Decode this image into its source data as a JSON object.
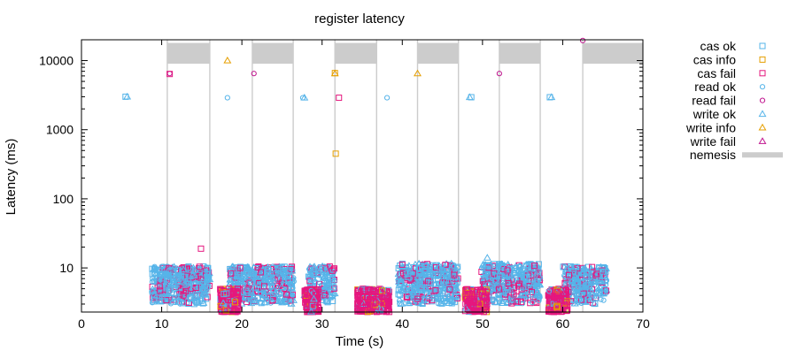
{
  "chart_data": {
    "type": "scatter",
    "title": "register latency",
    "xlabel": "Time (s)",
    "ylabel": "Latency (ms)",
    "xlim": [
      0,
      70
    ],
    "ylim": [
      2.3,
      20000
    ],
    "yscale": "log",
    "x_ticks": [
      0,
      10,
      20,
      30,
      40,
      50,
      60,
      70
    ],
    "y_ticks": [
      10,
      100,
      1000,
      10000
    ],
    "grid": false,
    "legend_position": "right",
    "series": [
      {
        "name": "cas ok",
        "marker": "square",
        "color": "#56b4e9"
      },
      {
        "name": "cas info",
        "marker": "square",
        "color": "#e69f00"
      },
      {
        "name": "cas fail",
        "marker": "square",
        "color": "#e5177e"
      },
      {
        "name": "read ok",
        "marker": "circle",
        "color": "#56b4e9"
      },
      {
        "name": "read fail",
        "marker": "circle",
        "color": "#c0148e"
      },
      {
        "name": "write ok",
        "marker": "triangle",
        "color": "#56b4e9"
      },
      {
        "name": "write info",
        "marker": "triangle",
        "color": "#e69f00"
      },
      {
        "name": "write fail",
        "marker": "triangle",
        "color": "#c0148e"
      },
      {
        "name": "nemesis",
        "marker": "band",
        "color": "#cccccc"
      }
    ],
    "nemesis_intervals": [
      [
        10.7,
        16.0
      ],
      [
        21.3,
        26.4
      ],
      [
        31.6,
        36.8
      ],
      [
        41.9,
        47.0
      ],
      [
        52.1,
        57.2
      ],
      [
        62.5,
        70.0
      ]
    ],
    "highlight_points": [
      {
        "series": "write ok",
        "x": 5.7,
        "y": 3000
      },
      {
        "series": "cas ok",
        "x": 5.5,
        "y": 3000
      },
      {
        "series": "read fail",
        "x": 11.0,
        "y": 6500
      },
      {
        "series": "cas fail",
        "x": 11.0,
        "y": 6400
      },
      {
        "series": "write info",
        "x": 18.2,
        "y": 10000
      },
      {
        "series": "read ok",
        "x": 18.2,
        "y": 2900
      },
      {
        "series": "read fail",
        "x": 21.5,
        "y": 6500
      },
      {
        "series": "write ok",
        "x": 27.8,
        "y": 2900
      },
      {
        "series": "read ok",
        "x": 27.6,
        "y": 2900
      },
      {
        "series": "write info",
        "x": 31.6,
        "y": 6500
      },
      {
        "series": "cas info",
        "x": 31.6,
        "y": 6600
      },
      {
        "series": "cas fail",
        "x": 32.1,
        "y": 2900
      },
      {
        "series": "cas info",
        "x": 31.7,
        "y": 450
      },
      {
        "series": "read ok",
        "x": 38.1,
        "y": 2900
      },
      {
        "series": "write info",
        "x": 41.9,
        "y": 6500
      },
      {
        "series": "write ok",
        "x": 48.4,
        "y": 2950
      },
      {
        "series": "cas ok",
        "x": 48.6,
        "y": 2950
      },
      {
        "series": "read fail",
        "x": 52.1,
        "y": 6500
      },
      {
        "series": "write ok",
        "x": 58.6,
        "y": 2950
      },
      {
        "series": "cas ok",
        "x": 58.4,
        "y": 2950
      },
      {
        "series": "read fail",
        "x": 62.5,
        "y": 19500
      },
      {
        "series": "cas fail",
        "x": 14.9,
        "y": 19
      },
      {
        "series": "write ok",
        "x": 50.6,
        "y": 14
      }
    ],
    "clusters": [
      {
        "series": "mixed-ok",
        "x_range": [
          8.8,
          16.0
        ],
        "y_range": [
          3.0,
          10.5
        ],
        "count": 420
      },
      {
        "series": "mixed-ok",
        "x_range": [
          18.5,
          26.5
        ],
        "y_range": [
          3.0,
          10.5
        ],
        "count": 420
      },
      {
        "series": "mixed-ok",
        "x_range": [
          28.3,
          31.6
        ],
        "y_range": [
          3.0,
          10.5
        ],
        "count": 160
      },
      {
        "series": "mixed-ok",
        "x_range": [
          39.5,
          47.0
        ],
        "y_range": [
          3.0,
          11.5
        ],
        "count": 420
      },
      {
        "series": "mixed-ok",
        "x_range": [
          49.8,
          57.2
        ],
        "y_range": [
          3.0,
          11.5
        ],
        "count": 420
      },
      {
        "series": "mixed-ok",
        "x_range": [
          60.0,
          65.5
        ],
        "y_range": [
          3.0,
          10.5
        ],
        "count": 300
      },
      {
        "series": "fail-dense",
        "x_range": [
          17.3,
          19.6
        ],
        "y_range": [
          2.3,
          5.0
        ],
        "count": 220
      },
      {
        "series": "fail-dense",
        "x_range": [
          27.8,
          29.6
        ],
        "y_range": [
          2.3,
          5.0
        ],
        "count": 170
      },
      {
        "series": "fail-dense",
        "x_range": [
          34.4,
          38.4
        ],
        "y_range": [
          2.3,
          5.0
        ],
        "count": 340
      },
      {
        "series": "fail-dense",
        "x_range": [
          47.8,
          50.6
        ],
        "y_range": [
          2.3,
          5.0
        ],
        "count": 240
      },
      {
        "series": "fail-dense",
        "x_range": [
          58.2,
          60.6
        ],
        "y_range": [
          2.3,
          5.0
        ],
        "count": 220
      }
    ]
  }
}
